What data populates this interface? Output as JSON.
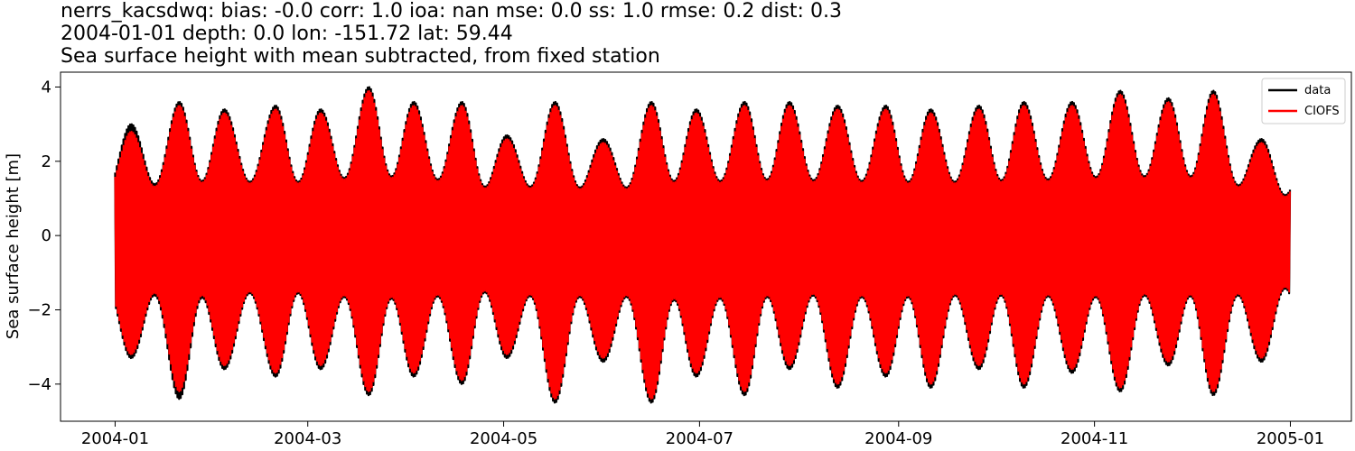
{
  "chart_data": {
    "type": "line",
    "title_lines": [
      "nerrs_kacsdwq: bias: -0.0  corr: 1.0  ioa: nan  mse: 0.0  ss: 1.0  rmse: 0.2  dist: 0.3",
      "2004-01-01 depth: 0.0 lon: -151.72 lat: 59.44",
      "Sea surface height with mean subtracted, from fixed station"
    ],
    "xlabel": "",
    "ylabel": "Sea surface height [m]",
    "x_range": [
      "2003-12-15",
      "2005-01-20"
    ],
    "xlim": [
      -17,
      385
    ],
    "ylim": [
      -5,
      4.4
    ],
    "x_ticks": [
      {
        "label": "2004-01",
        "day": 0
      },
      {
        "label": "2004-03",
        "day": 60
      },
      {
        "label": "2004-05",
        "day": 121
      },
      {
        "label": "2004-07",
        "day": 182
      },
      {
        "label": "2004-09",
        "day": 244
      },
      {
        "label": "2004-11",
        "day": 305
      },
      {
        "label": "2005-01",
        "day": 366
      }
    ],
    "y_ticks": [
      {
        "label": "4",
        "value": 4
      },
      {
        "label": "2",
        "value": 2
      },
      {
        "label": "0",
        "value": 0
      },
      {
        "label": "−2",
        "value": -2
      },
      {
        "label": "−4",
        "value": -4
      }
    ],
    "grid": false,
    "legend_position": "top-right",
    "series": [
      {
        "name": "data",
        "color": "#000000",
        "envelope_peak_days": [
          5,
          20,
          34,
          50,
          64,
          79,
          93,
          108,
          122,
          137,
          152,
          167,
          181,
          196,
          210,
          225,
          240,
          254,
          269,
          283,
          298,
          313,
          328,
          342,
          357
        ],
        "envelope_max_m": [
          3.0,
          3.6,
          3.4,
          3.5,
          3.4,
          4.0,
          3.6,
          3.6,
          2.7,
          3.6,
          2.6,
          3.6,
          3.4,
          3.6,
          3.6,
          3.5,
          3.5,
          3.4,
          3.5,
          3.6,
          3.6,
          3.9,
          3.7,
          3.9,
          2.6
        ],
        "envelope_min_m": [
          -3.3,
          -4.4,
          -3.6,
          -3.8,
          -3.6,
          -4.3,
          -3.8,
          -4.0,
          -3.3,
          -4.5,
          -3.4,
          -4.5,
          -3.8,
          -4.3,
          -3.6,
          -4.1,
          -3.8,
          -4.1,
          -3.6,
          -4.1,
          -3.7,
          -4.2,
          -3.5,
          -4.3,
          -3.4
        ]
      },
      {
        "name": "CIOFS",
        "color": "#ff0000",
        "envelope_peak_days": [
          5,
          20,
          34,
          50,
          64,
          79,
          93,
          108,
          122,
          137,
          152,
          167,
          181,
          196,
          210,
          225,
          240,
          254,
          269,
          283,
          298,
          313,
          328,
          342,
          357
        ],
        "envelope_max_m": [
          2.8,
          3.5,
          3.3,
          3.4,
          3.3,
          3.9,
          3.5,
          3.5,
          2.6,
          3.5,
          2.5,
          3.5,
          3.3,
          3.5,
          3.5,
          3.4,
          3.4,
          3.3,
          3.4,
          3.5,
          3.5,
          3.8,
          3.6,
          3.8,
          2.5
        ],
        "envelope_min_m": [
          -3.2,
          -4.2,
          -3.5,
          -3.7,
          -3.5,
          -4.2,
          -3.7,
          -3.9,
          -3.2,
          -4.4,
          -3.3,
          -4.4,
          -3.7,
          -4.2,
          -3.5,
          -4.0,
          -3.7,
          -4.0,
          -3.5,
          -4.0,
          -3.6,
          -4.1,
          -3.4,
          -4.2,
          -3.3
        ]
      }
    ]
  }
}
